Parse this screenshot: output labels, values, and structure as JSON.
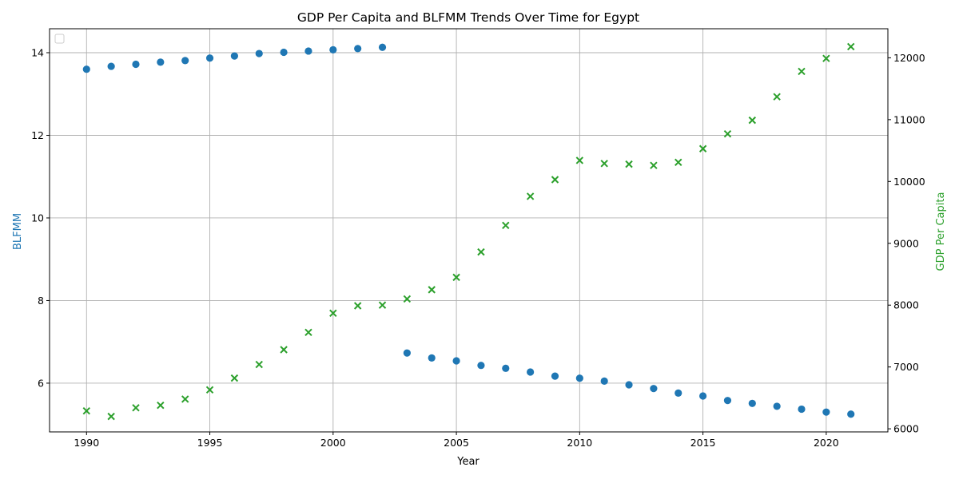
{
  "chart_data": {
    "type": "scatter",
    "title": "GDP Per Capita and BLFMM Trends Over Time for Egypt",
    "xlabel": "Year",
    "ylabel_left": "BLFMM",
    "ylabel_right": "GDP Per Capita",
    "xlim": [
      1988.5,
      2022.5
    ],
    "ylim_left": [
      4.82,
      14.58
    ],
    "ylim_right": [
      5950,
      12470
    ],
    "x_ticks": [
      1990,
      1995,
      2000,
      2005,
      2010,
      2015,
      2020
    ],
    "y_ticks_left": [
      6,
      8,
      10,
      12,
      14
    ],
    "y_ticks_right": [
      6000,
      7000,
      8000,
      9000,
      10000,
      11000,
      12000
    ],
    "grid": true,
    "legend": "top-left (empty)",
    "series": [
      {
        "axis": "left",
        "marker": "circle",
        "color": "#1f77b4",
        "x": [
          1990,
          1991,
          1992,
          1993,
          1994,
          1995,
          1996,
          1997,
          1998,
          1999,
          2000,
          2001,
          2002,
          2003,
          2004,
          2005,
          2006,
          2007,
          2008,
          2009,
          2010,
          2011,
          2012,
          2013,
          2014,
          2015,
          2016,
          2017,
          2018,
          2019,
          2020,
          2021
        ],
        "y": [
          13.6,
          13.67,
          13.72,
          13.77,
          13.81,
          13.87,
          13.92,
          13.98,
          14.01,
          14.04,
          14.07,
          14.1,
          14.13,
          6.73,
          6.61,
          6.54,
          6.43,
          6.36,
          6.27,
          6.17,
          6.12,
          6.05,
          5.96,
          5.87,
          5.76,
          5.69,
          5.58,
          5.51,
          5.44,
          5.37,
          5.3,
          5.25
        ]
      },
      {
        "axis": "right",
        "marker": "x",
        "color": "#2ca02c",
        "x": [
          1990,
          1991,
          1992,
          1993,
          1994,
          1995,
          1996,
          1997,
          1998,
          1999,
          2000,
          2001,
          2002,
          2003,
          2004,
          2005,
          2006,
          2007,
          2008,
          2009,
          2010,
          2011,
          2012,
          2013,
          2014,
          2015,
          2016,
          2017,
          2018,
          2019,
          2020,
          2021
        ],
        "y": [
          6290,
          6200,
          6340,
          6380,
          6480,
          6630,
          6820,
          7040,
          7280,
          7560,
          7870,
          7990,
          8000,
          8100,
          8250,
          8450,
          8860,
          9290,
          9760,
          10030,
          10340,
          10290,
          10280,
          10260,
          10310,
          10530,
          10770,
          10990,
          11370,
          11780,
          11990,
          12180
        ]
      }
    ]
  }
}
